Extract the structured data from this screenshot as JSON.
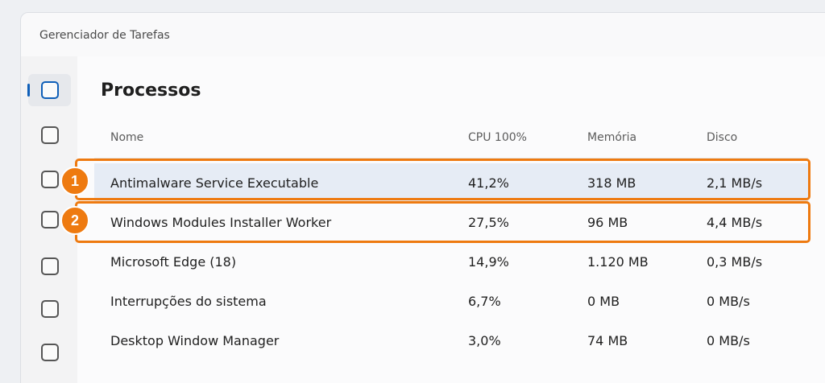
{
  "window": {
    "title": "Gerenciador de Tarefas"
  },
  "sidebar": {
    "items": [
      {
        "name": "nav-processes",
        "active": true
      },
      {
        "name": "nav-item-2",
        "active": false
      },
      {
        "name": "nav-item-3",
        "active": false
      },
      {
        "name": "nav-item-4",
        "active": false
      },
      {
        "name": "nav-item-5",
        "active": false
      },
      {
        "name": "nav-item-6",
        "active": false
      },
      {
        "name": "nav-item-7",
        "active": false
      }
    ]
  },
  "page": {
    "title": "Processos"
  },
  "table": {
    "headers": {
      "name": "Nome",
      "cpu": "CPU 100%",
      "memory": "Memória",
      "disk": "Disco"
    },
    "rows": [
      {
        "name": "Antimalware Service Executable",
        "cpu": "41,2%",
        "memory": "318 MB",
        "disk": "2,1 MB/s"
      },
      {
        "name": "Windows Modules Installer Worker",
        "cpu": "27,5%",
        "memory": "96 MB",
        "disk": "4,4 MB/s"
      },
      {
        "name": "Microsoft Edge (18)",
        "cpu": "14,9%",
        "memory": "1.120 MB",
        "disk": "0,3 MB/s"
      },
      {
        "name": "Interrupções do sistema",
        "cpu": "6,7%",
        "memory": "0 MB",
        "disk": "0 MB/s"
      },
      {
        "name": "Desktop Window Manager",
        "cpu": "3,0%",
        "memory": "74 MB",
        "disk": "0 MB/s"
      }
    ]
  },
  "annotations": {
    "badge_1": "1",
    "badge_2": "2",
    "color": "#ee7a10"
  },
  "colors": {
    "accent": "#0f5fb8",
    "selected_row": "#e6ecf5"
  }
}
